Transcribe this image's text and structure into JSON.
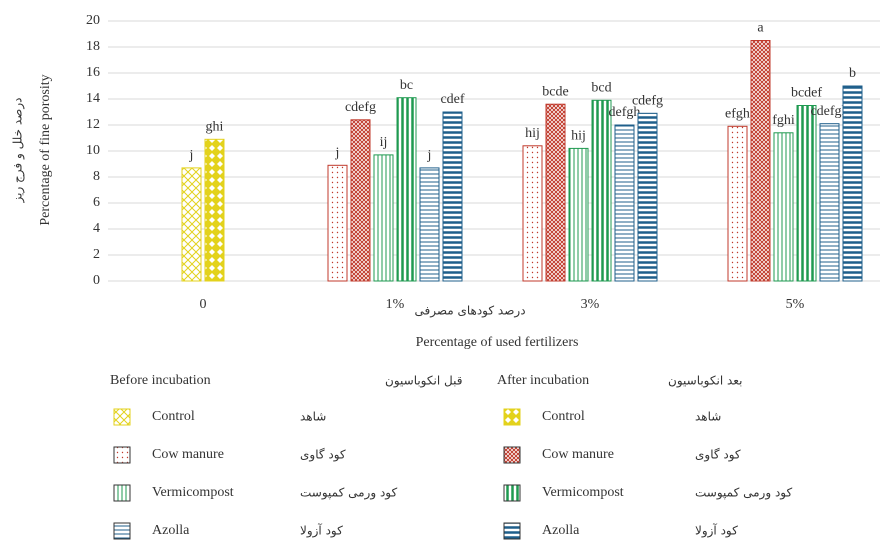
{
  "chart_data": {
    "type": "bar",
    "y_label": "Percentage of fine porosity",
    "y_label_fa": "درصد خلل و فرج ریز",
    "x_label": "Percentage of used fertilizers",
    "x_label_fa": "درصد کودهای مصرفی",
    "categories": [
      "0",
      "1%",
      "3%",
      "5%"
    ],
    "ylim": [
      0,
      20
    ],
    "yticks": [
      0,
      2,
      4,
      6,
      8,
      10,
      12,
      14,
      16,
      18,
      20
    ],
    "grid": true,
    "legend_groups": [
      {
        "title": "Before incubation",
        "title_fa": "قبل انکوباسیون"
      },
      {
        "title": "After incubation",
        "title_fa": "بعد انکوباسیون"
      }
    ],
    "series": [
      {
        "name": "Control",
        "name_fa": "شاهد",
        "color": "#e3d21c",
        "pattern": "crosshatch",
        "values": [
          8.7,
          null,
          null,
          null
        ],
        "value_labels": [
          "j",
          null,
          null,
          null
        ]
      },
      {
        "name": "Control",
        "name_fa": "شاهد",
        "color": "#e3d21c",
        "pattern": "diamond",
        "values": [
          10.9,
          null,
          null,
          null
        ],
        "value_labels": [
          "ghi",
          null,
          null,
          null
        ]
      },
      {
        "name": "Cow manure",
        "name_fa": "کود گاوی",
        "color": "#c0392b",
        "pattern": "dots",
        "values": [
          null,
          8.9,
          10.4,
          11.9
        ],
        "value_labels": [
          null,
          "j",
          "hij",
          "efgh"
        ]
      },
      {
        "name": "Cow manure",
        "name_fa": "کود گاوی",
        "color": "#c0392b",
        "pattern": "dense-crosshatch",
        "values": [
          null,
          12.4,
          13.6,
          18.5
        ],
        "value_labels": [
          null,
          "cdefg",
          "bcde",
          "a"
        ]
      },
      {
        "name": "Vermicompost",
        "name_fa": "کود ورمی کمپوست",
        "color": "#1f9a50",
        "pattern": "vlines",
        "values": [
          null,
          9.7,
          10.2,
          11.4
        ],
        "value_labels": [
          null,
          "ij",
          "hij",
          "fghi"
        ]
      },
      {
        "name": "Vermicompost",
        "name_fa": "کود ورمی کمپوست",
        "color": "#1f9a50",
        "pattern": "thick-vlines",
        "values": [
          null,
          14.1,
          13.9,
          13.5
        ],
        "value_labels": [
          null,
          "bc",
          "bcd",
          "bcdef"
        ]
      },
      {
        "name": "Azolla",
        "name_fa": "کود آزولا",
        "color": "#1f5f8b",
        "pattern": "hlines",
        "values": [
          null,
          8.7,
          12.0,
          12.1
        ],
        "value_labels": [
          null,
          "j",
          "defgh",
          "cdefgh"
        ]
      },
      {
        "name": "Azolla",
        "name_fa": "کود آزولا",
        "color": "#1f5f8b",
        "pattern": "thick-hlines",
        "values": [
          null,
          13.0,
          12.9,
          15.0
        ],
        "value_labels": [
          null,
          "cdef",
          "cdefg",
          "b"
        ]
      }
    ]
  }
}
